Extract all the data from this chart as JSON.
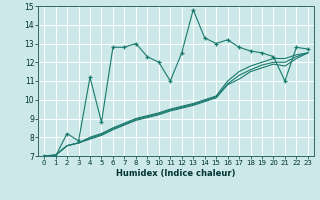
{
  "xlabel": "Humidex (Indice chaleur)",
  "bg_color": "#cce8e8",
  "grid_color": "#ffffff",
  "line_color": "#1a7a6e",
  "xlim": [
    -0.5,
    23.5
  ],
  "ylim": [
    7,
    15
  ],
  "xticks": [
    0,
    1,
    2,
    3,
    4,
    5,
    6,
    7,
    8,
    9,
    10,
    11,
    12,
    13,
    14,
    15,
    16,
    17,
    18,
    19,
    20,
    21,
    22,
    23
  ],
  "yticks": [
    7,
    8,
    9,
    10,
    11,
    12,
    13,
    14,
    15
  ],
  "series_main": [
    7.0,
    7.0,
    8.2,
    7.8,
    11.2,
    8.8,
    12.8,
    12.8,
    13.0,
    12.3,
    12.0,
    11.0,
    12.5,
    14.8,
    13.3,
    13.0,
    13.2,
    12.8,
    12.6,
    12.5,
    12.3,
    11.0,
    12.8,
    12.7
  ],
  "series_smooth": [
    [
      7.0,
      7.05,
      7.55,
      7.7,
      8.0,
      8.2,
      8.5,
      8.75,
      9.0,
      9.15,
      9.3,
      9.5,
      9.65,
      9.8,
      10.0,
      10.2,
      11.0,
      11.5,
      11.8,
      12.0,
      12.2,
      12.2,
      12.4,
      12.5
    ],
    [
      7.0,
      7.05,
      7.55,
      7.7,
      7.95,
      8.15,
      8.45,
      8.7,
      8.95,
      9.1,
      9.25,
      9.45,
      9.6,
      9.75,
      9.95,
      10.15,
      10.85,
      11.3,
      11.6,
      11.85,
      12.0,
      12.0,
      12.3,
      12.5
    ],
    [
      7.0,
      7.05,
      7.55,
      7.7,
      7.9,
      8.1,
      8.4,
      8.65,
      8.9,
      9.05,
      9.2,
      9.4,
      9.55,
      9.7,
      9.9,
      10.1,
      10.8,
      11.1,
      11.5,
      11.7,
      11.9,
      11.8,
      12.2,
      12.5
    ]
  ]
}
